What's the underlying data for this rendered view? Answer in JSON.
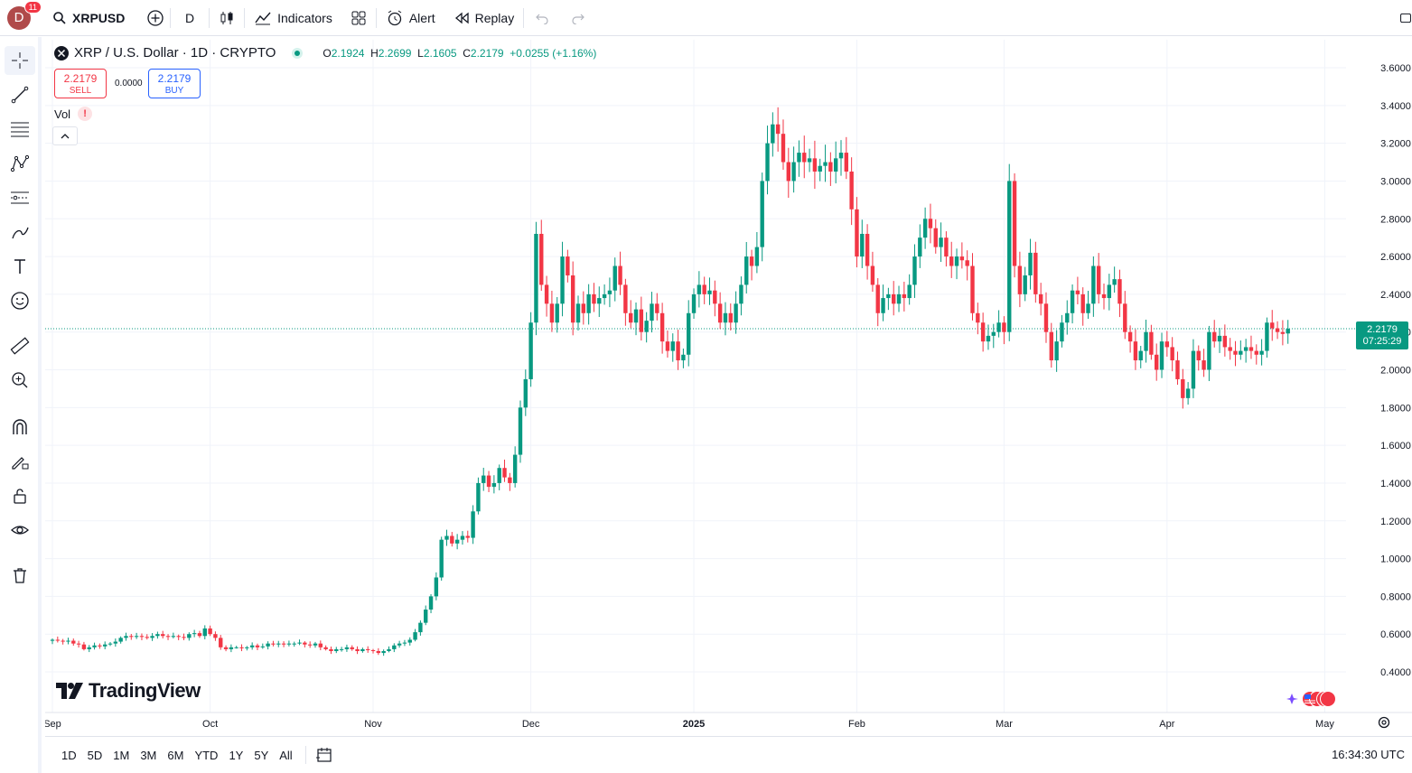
{
  "header": {
    "avatar_letter": "D",
    "notification_count": "11",
    "symbol": "XRPUSD",
    "interval": "D",
    "indicators_label": "Indicators",
    "alert_label": "Alert",
    "replay_label": "Replay"
  },
  "legend": {
    "title": "XRP / U.S. Dollar · 1D · CRYPTO",
    "open_label": "O",
    "open": "2.1924",
    "high_label": "H",
    "high": "2.2699",
    "low_label": "L",
    "low": "2.1605",
    "close_label": "C",
    "close": "2.2179",
    "change": "+0.0255 (+1.16%)"
  },
  "trade": {
    "sell_price": "2.2179",
    "sell_label": "SELL",
    "spread": "0.0000",
    "buy_price": "2.2179",
    "buy_label": "BUY"
  },
  "volume": {
    "label": "Vol",
    "warning": "!"
  },
  "logo_text": "TradingView",
  "price_label": {
    "price": "2.2179",
    "countdown": "07:25:29"
  },
  "bottom": {
    "ranges": [
      "1D",
      "5D",
      "1M",
      "3M",
      "6M",
      "YTD",
      "1Y",
      "5Y",
      "All"
    ],
    "clock": "16:34:30 UTC"
  },
  "colors": {
    "up": "#089981",
    "down": "#f23645",
    "grid": "#f0f3fa",
    "accent": "#2962ff"
  },
  "chart_data": {
    "type": "candlestick",
    "ylim": [
      0.3,
      3.7
    ],
    "yticks": [
      "3.6000",
      "3.4000",
      "3.2000",
      "3.0000",
      "2.8000",
      "2.6000",
      "2.4000",
      "2.2000",
      "2.0000",
      "1.8000",
      "1.6000",
      "1.4000",
      "1.2000",
      "1.0000",
      "0.8000",
      "0.6000",
      "0.4000"
    ],
    "xticks": [
      {
        "label": "Sep",
        "day": 0,
        "bold": false
      },
      {
        "label": "Oct",
        "day": 30,
        "bold": false
      },
      {
        "label": "Nov",
        "day": 61,
        "bold": false
      },
      {
        "label": "Dec",
        "day": 91,
        "bold": false
      },
      {
        "label": "2025",
        "day": 122,
        "bold": true
      },
      {
        "label": "Feb",
        "day": 153,
        "bold": false
      },
      {
        "label": "Mar",
        "day": 181,
        "bold": false
      },
      {
        "label": "Apr",
        "day": 212,
        "bold": false
      },
      {
        "label": "May",
        "day": 242,
        "bold": false
      }
    ],
    "last_price": 2.2179,
    "closes": [
      0.57,
      0.565,
      0.56,
      0.565,
      0.55,
      0.545,
      0.52,
      0.53,
      0.54,
      0.535,
      0.545,
      0.55,
      0.56,
      0.58,
      0.59,
      0.585,
      0.59,
      0.585,
      0.58,
      0.59,
      0.6,
      0.59,
      0.585,
      0.59,
      0.585,
      0.58,
      0.6,
      0.605,
      0.59,
      0.63,
      0.6,
      0.58,
      0.53,
      0.52,
      0.53,
      0.53,
      0.525,
      0.53,
      0.54,
      0.53,
      0.535,
      0.55,
      0.545,
      0.55,
      0.545,
      0.55,
      0.55,
      0.555,
      0.545,
      0.54,
      0.55,
      0.53,
      0.52,
      0.51,
      0.52,
      0.52,
      0.53,
      0.52,
      0.51,
      0.52,
      0.515,
      0.51,
      0.5,
      0.51,
      0.52,
      0.54,
      0.55,
      0.555,
      0.57,
      0.61,
      0.66,
      0.73,
      0.8,
      0.9,
      1.1,
      1.12,
      1.08,
      1.1,
      1.12,
      1.11,
      1.25,
      1.4,
      1.44,
      1.38,
      1.4,
      1.48,
      1.43,
      1.4,
      1.55,
      1.8,
      1.95,
      2.25,
      2.72,
      2.45,
      2.35,
      2.25,
      2.35,
      2.6,
      2.5,
      2.25,
      2.35,
      2.3,
      2.4,
      2.35,
      2.38,
      2.4,
      2.42,
      2.55,
      2.45,
      2.3,
      2.25,
      2.32,
      2.2,
      2.26,
      2.35,
      2.3,
      2.15,
      2.1,
      2.15,
      2.05,
      2.08,
      2.3,
      2.4,
      2.45,
      2.4,
      2.42,
      2.35,
      2.25,
      2.3,
      2.25,
      2.35,
      2.45,
      2.6,
      2.55,
      2.65,
      3.0,
      3.2,
      3.3,
      3.25,
      3.1,
      3.0,
      3.1,
      3.15,
      3.1,
      3.12,
      3.05,
      3.08,
      3.1,
      3.05,
      3.12,
      3.15,
      3.05,
      2.85,
      2.6,
      2.72,
      2.55,
      2.45,
      2.3,
      2.38,
      2.4,
      2.35,
      2.4,
      2.38,
      2.45,
      2.6,
      2.7,
      2.8,
      2.75,
      2.65,
      2.7,
      2.6,
      2.55,
      2.6,
      2.58,
      2.55,
      2.3,
      2.25,
      2.15,
      2.18,
      2.2,
      2.25,
      2.2,
      3.0,
      2.55,
      2.4,
      2.5,
      2.62,
      2.4,
      2.35,
      2.2,
      2.05,
      2.15,
      2.25,
      2.3,
      2.42,
      2.4,
      2.3,
      2.35,
      2.55,
      2.4,
      2.38,
      2.45,
      2.48,
      2.35,
      2.2,
      2.15,
      2.05,
      2.1,
      2.2,
      2.08,
      2.0,
      2.15,
      2.12,
      2.05,
      1.95,
      1.85,
      1.9,
      2.1,
      2.05,
      2.0,
      2.2,
      2.15,
      2.18,
      2.12,
      2.1,
      2.08,
      2.1,
      2.12,
      2.1,
      2.08,
      2.1,
      2.25,
      2.22,
      2.2,
      2.19,
      2.2179
    ]
  }
}
